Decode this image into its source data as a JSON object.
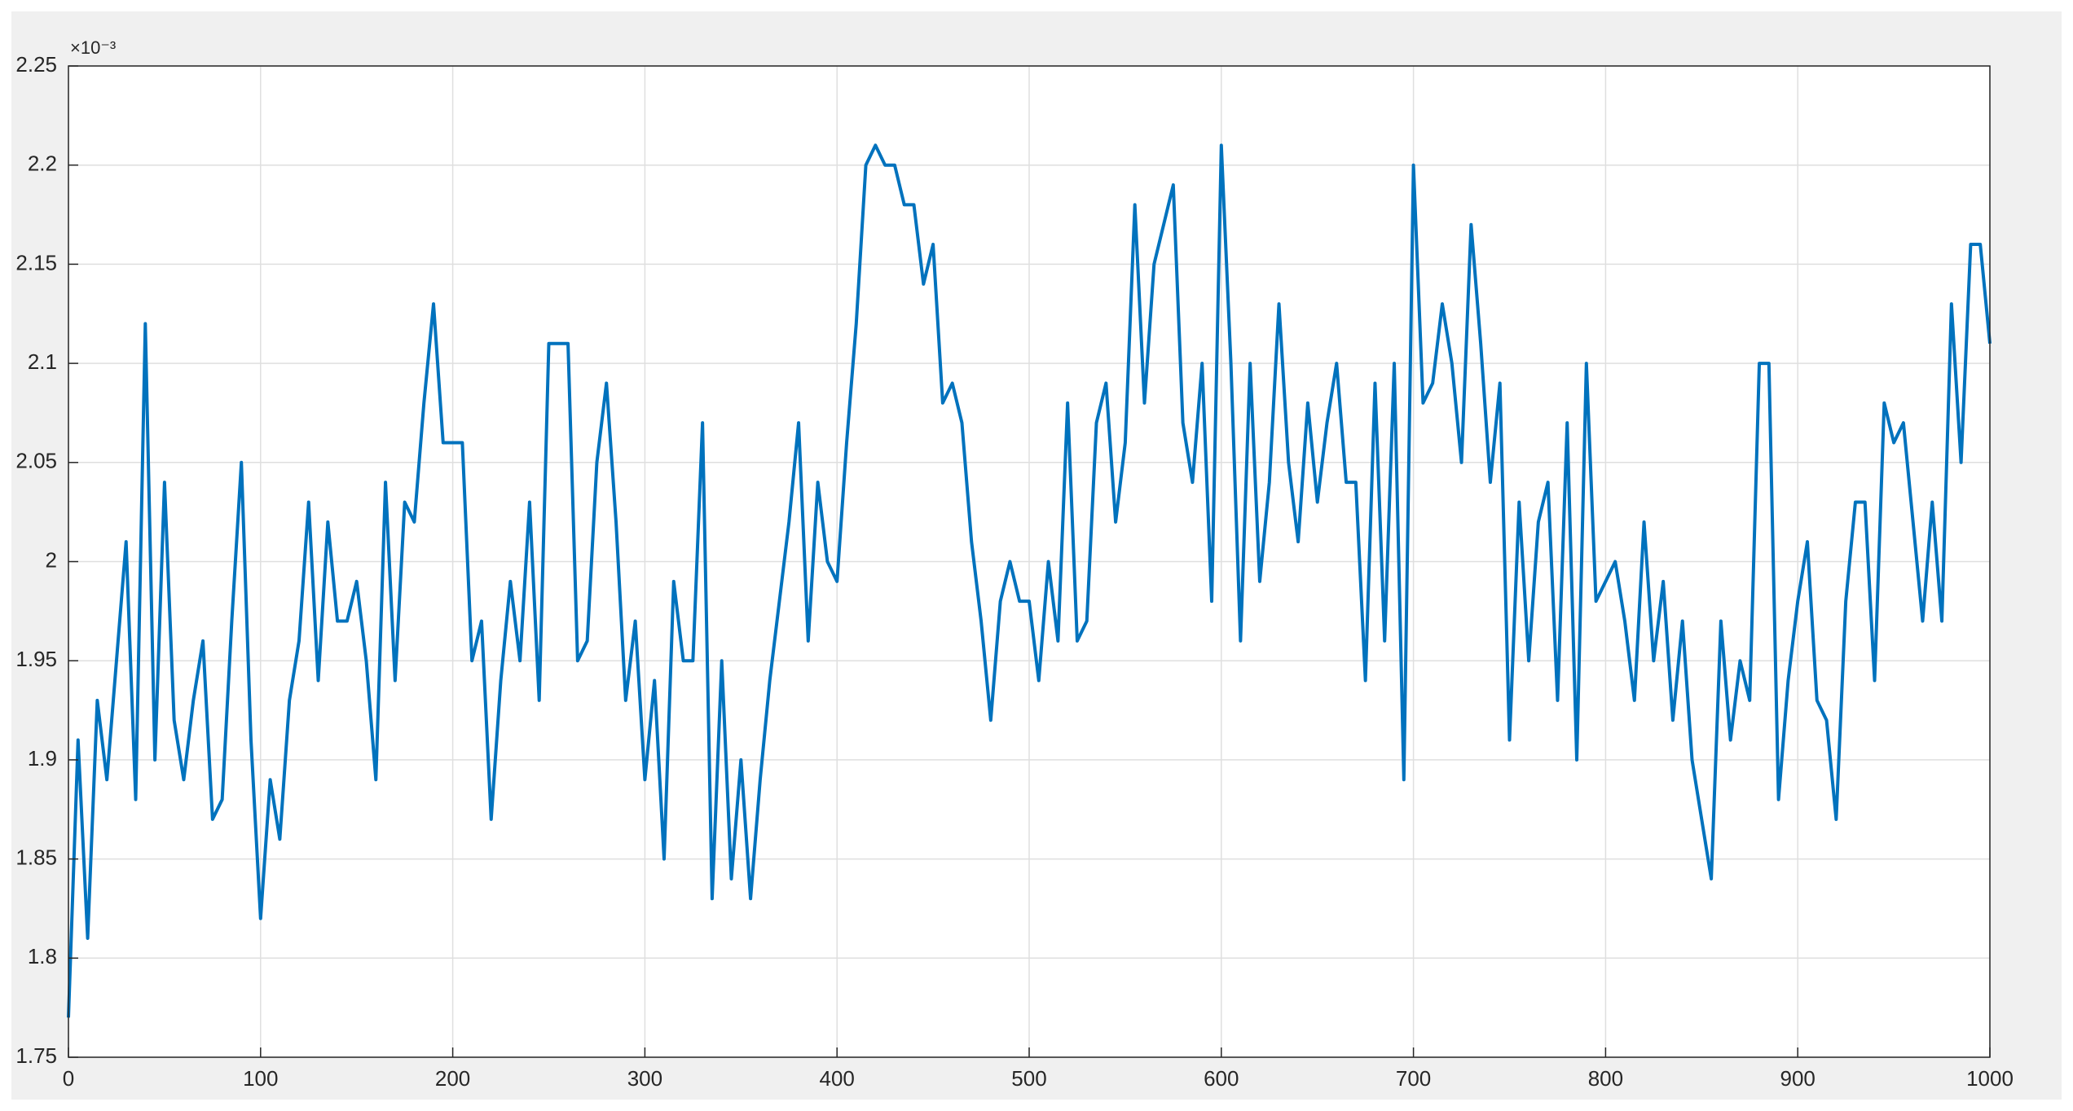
{
  "chart_data": {
    "type": "line",
    "y_exponent_label": "×10⁻³",
    "xlim": [
      0,
      1000
    ],
    "xticks": [
      0,
      100,
      200,
      300,
      400,
      500,
      600,
      700,
      800,
      900,
      1000
    ],
    "ylim": [
      1.75,
      2.25
    ],
    "yticks": [
      1.75,
      1.8,
      1.85,
      1.9,
      1.95,
      2,
      2.05,
      2.1,
      2.15,
      2.2,
      2.25
    ],
    "grid": true,
    "x": [
      0,
      5,
      10,
      15,
      20,
      25,
      30,
      35,
      40,
      45,
      50,
      55,
      60,
      65,
      70,
      75,
      80,
      85,
      90,
      95,
      100,
      105,
      110,
      115,
      120,
      125,
      130,
      135,
      140,
      145,
      150,
      155,
      160,
      165,
      170,
      175,
      180,
      185,
      190,
      195,
      200,
      205,
      210,
      215,
      220,
      225,
      230,
      235,
      240,
      245,
      250,
      255,
      260,
      265,
      270,
      275,
      280,
      285,
      290,
      295,
      300,
      305,
      310,
      315,
      320,
      325,
      330,
      335,
      340,
      345,
      350,
      355,
      360,
      365,
      370,
      375,
      380,
      385,
      390,
      395,
      400,
      405,
      410,
      415,
      420,
      425,
      430,
      435,
      440,
      445,
      450,
      455,
      460,
      465,
      470,
      475,
      480,
      485,
      490,
      495,
      500,
      505,
      510,
      515,
      520,
      525,
      530,
      535,
      540,
      545,
      550,
      555,
      560,
      565,
      570,
      575,
      580,
      585,
      590,
      595,
      600,
      605,
      610,
      615,
      620,
      625,
      630,
      635,
      640,
      645,
      650,
      655,
      660,
      665,
      670,
      675,
      680,
      685,
      690,
      695,
      700,
      705,
      710,
      715,
      720,
      725,
      730,
      735,
      740,
      745,
      750,
      755,
      760,
      765,
      770,
      775,
      780,
      785,
      790,
      795,
      800,
      805,
      810,
      815,
      820,
      825,
      830,
      835,
      840,
      845,
      850,
      855,
      860,
      865,
      870,
      875,
      880,
      885,
      890,
      895,
      900,
      905,
      910,
      915,
      920,
      925,
      930,
      935,
      940,
      945,
      950,
      955,
      960,
      965,
      970,
      975,
      980,
      985,
      990,
      995,
      1000
    ],
    "series": [
      {
        "color": "#0072bd",
        "values": [
          1.77,
          1.91,
          1.81,
          1.93,
          1.89,
          1.95,
          2.01,
          1.88,
          2.12,
          1.9,
          2.04,
          1.92,
          1.89,
          1.93,
          1.96,
          1.87,
          1.88,
          1.97,
          2.05,
          1.91,
          1.82,
          1.89,
          1.86,
          1.93,
          1.96,
          2.03,
          1.94,
          2.02,
          1.97,
          1.97,
          1.99,
          1.95,
          1.89,
          2.04,
          1.94,
          2.03,
          2.02,
          2.08,
          2.13,
          2.06,
          2.06,
          2.06,
          1.95,
          1.97,
          1.87,
          1.94,
          1.99,
          1.95,
          2.03,
          1.93,
          2.11,
          2.11,
          2.11,
          1.95,
          1.96,
          2.05,
          2.09,
          2.02,
          1.93,
          1.97,
          1.89,
          1.94,
          1.85,
          1.99,
          1.95,
          1.95,
          2.07,
          1.83,
          1.95,
          1.84,
          1.9,
          1.83,
          1.89,
          1.94,
          1.98,
          2.02,
          2.07,
          1.96,
          2.04,
          2.0,
          1.99,
          2.06,
          2.12,
          2.2,
          2.21,
          2.2,
          2.2,
          2.18,
          2.18,
          2.14,
          2.16,
          2.08,
          2.09,
          2.07,
          2.01,
          1.97,
          1.92,
          1.98,
          2.0,
          1.98,
          1.98,
          1.94,
          2.0,
          1.96,
          2.08,
          1.96,
          1.97,
          2.07,
          2.09,
          2.02,
          2.06,
          2.18,
          2.08,
          2.15,
          2.17,
          2.19,
          2.07,
          2.04,
          2.1,
          1.98,
          2.21,
          2.1,
          1.96,
          2.1,
          1.99,
          2.04,
          2.13,
          2.05,
          2.01,
          2.08,
          2.03,
          2.07,
          2.1,
          2.04,
          2.04,
          1.94,
          2.09,
          1.96,
          2.1,
          1.89,
          2.2,
          2.08,
          2.09,
          2.13,
          2.1,
          2.05,
          2.17,
          2.11,
          2.04,
          2.09,
          1.91,
          2.03,
          1.95,
          2.02,
          2.04,
          1.93,
          2.07,
          1.9,
          2.1,
          1.98,
          1.99,
          2.0,
          1.97,
          1.93,
          2.02,
          1.95,
          1.99,
          1.92,
          1.97,
          1.9,
          1.87,
          1.84,
          1.97,
          1.91,
          1.95,
          1.93,
          2.1,
          2.1,
          1.88,
          1.94,
          1.98,
          2.01,
          1.93,
          1.92,
          1.87,
          1.98,
          2.03,
          2.03,
          1.94,
          2.08,
          2.06,
          2.07,
          2.02,
          1.97,
          2.03,
          1.97,
          2.13,
          2.05,
          2.16,
          2.16,
          2.11
        ]
      }
    ]
  }
}
